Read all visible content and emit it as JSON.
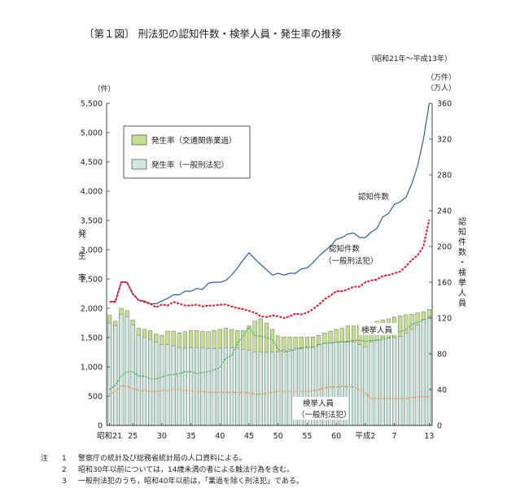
{
  "header": {
    "title": "〔第１図〕 刑法犯の認知件数・検挙人員・発生率の推移",
    "period": "（昭和21年～平成13年）"
  },
  "axes": {
    "left_unit": "（件）",
    "left_label": "発生率",
    "right_unit_1": "（万件）",
    "right_unit_2": "（万人）",
    "right_label": "認知件数・検挙人員",
    "x_ticks": [
      "昭和21",
      "25",
      "30",
      "35",
      "40",
      "45",
      "50",
      "55",
      "60",
      "平成2",
      "7",
      "13"
    ],
    "left_ticks": [
      "0",
      "500",
      "1,000",
      "1,500",
      "2,000",
      "2,500",
      "3,000",
      "3,500",
      "4,000",
      "4,500",
      "5,000",
      "5,500"
    ],
    "right_ticks": [
      "0",
      "40",
      "80",
      "120",
      "160",
      "200",
      "240",
      "280",
      "320",
      "360"
    ]
  },
  "legend": {
    "items": [
      {
        "label": "発生率（交通関係業過）",
        "color": "#c4e08e"
      },
      {
        "label": "発生率（一般刑法犯）",
        "color": "#cde9de"
      }
    ]
  },
  "line_labels": {
    "ninchi": "認知件数",
    "ninchi_ippan_1": "認知件数",
    "ninchi_ippan_2": "（一般刑法犯）",
    "kenkyo": "検挙人員",
    "kenkyo_ippan_1": "検挙人員",
    "kenkyo_ippan_2": "（一般刑法犯）"
  },
  "notes": [
    {
      "mark": "注",
      "num": "1",
      "text": "警察庁の統計及び総務省統計局の人口資料による。"
    },
    {
      "mark": "",
      "num": "2",
      "text": "昭和30年以前については，14歳未満の者による触法行為を含む。"
    },
    {
      "mark": "",
      "num": "3",
      "text": "一般刑法犯のうち，昭和40年以前は，「業過を除く刑法犯」である。"
    }
  ],
  "chart_data": {
    "type": "bar",
    "x": [
      1946,
      1947,
      1948,
      1949,
      1950,
      1951,
      1952,
      1953,
      1954,
      1955,
      1956,
      1957,
      1958,
      1959,
      1960,
      1961,
      1962,
      1963,
      1964,
      1965,
      1966,
      1967,
      1968,
      1969,
      1970,
      1971,
      1972,
      1973,
      1974,
      1975,
      1976,
      1977,
      1978,
      1979,
      1980,
      1981,
      1982,
      1983,
      1984,
      1985,
      1986,
      1987,
      1988,
      1989,
      1990,
      1991,
      1992,
      1993,
      1994,
      1995,
      1996,
      1997,
      1998,
      1999,
      2000,
      2001
    ],
    "left_ylim": [
      0,
      5500
    ],
    "right_ylim": [
      0,
      360
    ],
    "series": [
      {
        "name": "発生率（交通関係業過）",
        "axis": "left",
        "kind": "bar_total",
        "values": [
          1880,
          1780,
          2000,
          1960,
          1800,
          1660,
          1640,
          1620,
          1560,
          1540,
          1610,
          1610,
          1580,
          1600,
          1620,
          1620,
          1610,
          1600,
          1620,
          1640,
          1660,
          1640,
          1620,
          1620,
          1700,
          1780,
          1820,
          1750,
          1640,
          1530,
          1510,
          1510,
          1510,
          1510,
          1510,
          1510,
          1540,
          1580,
          1610,
          1640,
          1660,
          1700,
          1700,
          1710,
          1720,
          1750,
          1780,
          1800,
          1820,
          1850,
          1870,
          1890,
          1900,
          1920,
          1940,
          1980
        ]
      },
      {
        "name": "発生率（一般刑法犯）",
        "axis": "left",
        "kind": "bar_lower",
        "values": [
          1750,
          1700,
          1900,
          1860,
          1720,
          1540,
          1500,
          1470,
          1420,
          1380,
          1380,
          1360,
          1330,
          1320,
          1330,
          1330,
          1320,
          1310,
          1310,
          1320,
          1330,
          1330,
          1320,
          1300,
          1280,
          1260,
          1260,
          1250,
          1260,
          1260,
          1280,
          1300,
          1320,
          1310,
          1320,
          1340,
          1380,
          1400,
          1410,
          1420,
          1430,
          1420,
          1420,
          1380,
          1340,
          1420,
          1460,
          1500,
          1490,
          1500,
          1520,
          1570,
          1640,
          1710,
          1810,
          1850
        ]
      },
      {
        "name": "認知件数",
        "axis": "right",
        "kind": "line",
        "color": "#2f5f9e",
        "values": [
          138,
          139,
          160,
          160,
          147,
          140,
          139,
          136,
          136,
          139,
          142,
          146,
          146,
          150,
          150,
          153,
          152,
          159,
          160,
          160,
          162,
          168,
          176,
          185,
          193,
          186,
          180,
          174,
          168,
          170,
          168,
          170,
          170,
          175,
          176,
          182,
          189,
          195,
          200,
          208,
          210,
          214,
          215,
          210,
          210,
          216,
          220,
          233,
          237,
          247,
          250,
          255,
          270,
          290,
          320,
          360
        ]
      },
      {
        "name": "認知件数（一般刑法犯）",
        "axis": "right",
        "kind": "line",
        "color": "#e8172c",
        "dashed": true,
        "values": [
          138,
          138,
          160,
          160,
          147,
          140,
          138,
          136,
          132,
          135,
          134,
          138,
          136,
          134,
          134,
          135,
          133,
          134,
          134,
          135,
          135,
          133,
          131,
          130,
          128,
          126,
          122,
          121,
          123,
          122,
          120,
          122,
          125,
          124,
          126,
          130,
          135,
          141,
          145,
          150,
          150,
          152,
          155,
          155,
          160,
          162,
          163,
          167,
          168,
          170,
          172,
          178,
          185,
          190,
          200,
          230
        ]
      },
      {
        "name": "検挙人員",
        "axis": "right",
        "kind": "line",
        "color": "#3aa84a",
        "dashed": true,
        "values": [
          40,
          45,
          55,
          60,
          60,
          55,
          55,
          52,
          52,
          54,
          56,
          57,
          58,
          60,
          60,
          58,
          59,
          60,
          62,
          65,
          75,
          78,
          92,
          100,
          110,
          100,
          100,
          98,
          96,
          85,
          82,
          83,
          85,
          87,
          88,
          87,
          90,
          92,
          92,
          93,
          93,
          94,
          95,
          95,
          94,
          95,
          95,
          96,
          98,
          101,
          105,
          107,
          113,
          115,
          118,
          120
        ]
      },
      {
        "name": "検挙人員（一般刑法犯）",
        "axis": "right",
        "kind": "line",
        "color": "#f08a3c",
        "dashed": true,
        "values": [
          35,
          38,
          44,
          44,
          41,
          39,
          39,
          38,
          38,
          39,
          39,
          40,
          40,
          39,
          39,
          38,
          38,
          37,
          37,
          37,
          37,
          37,
          37,
          37,
          36,
          35,
          35,
          36,
          37,
          38,
          38,
          38,
          38,
          38,
          38,
          39,
          40,
          42,
          43,
          43,
          44,
          43,
          43,
          40,
          36,
          30,
          30,
          30,
          30,
          30,
          30,
          30,
          31,
          32,
          32,
          32
        ]
      }
    ]
  }
}
